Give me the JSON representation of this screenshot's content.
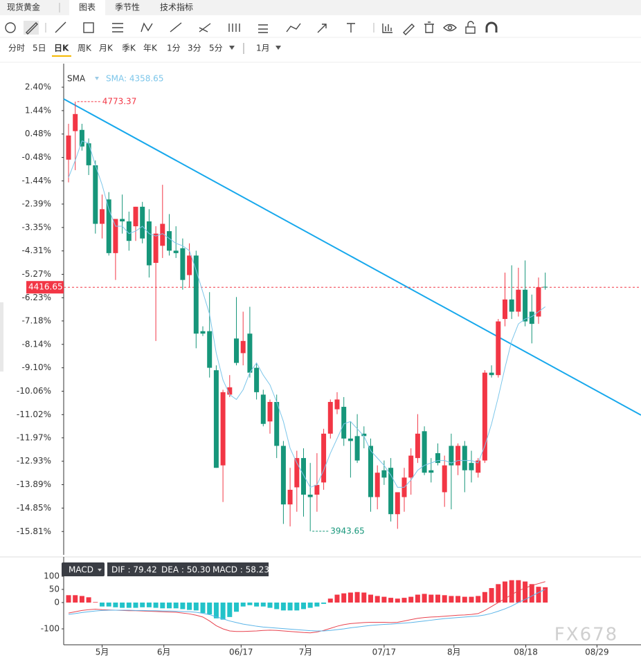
{
  "header": {
    "title": "现货黄金",
    "tabs": [
      "图表",
      "季节性",
      "技术指标"
    ]
  },
  "periods": {
    "items": [
      "分时",
      "5日",
      "日K",
      "周K",
      "月K",
      "季K",
      "年K",
      "1分",
      "3分",
      "5分"
    ],
    "selected": 2,
    "range": "1月"
  },
  "watermark": "FX678",
  "chart_data": [
    {
      "type": "candlestick",
      "up_color": "#f23645",
      "down_color": "#16967a",
      "xlim": [
        -0.62,
        85.26
      ],
      "ylim": [
        -16.71,
        3.28
      ],
      "yticks": [
        {
          "value": 2.4,
          "label": "2.40%"
        },
        {
          "value": 1.44,
          "label": "1.44%"
        },
        {
          "value": 0.48,
          "label": "0.48%"
        },
        {
          "value": -0.48,
          "label": "-0.48%"
        },
        {
          "value": -1.44,
          "label": "-1.44%"
        },
        {
          "value": -2.39,
          "label": "-2.39%"
        },
        {
          "value": -3.35,
          "label": "-3.35%"
        },
        {
          "value": -4.31,
          "label": "-4.31%"
        },
        {
          "value": -5.27,
          "label": "-5.27%"
        },
        {
          "value": -6.23,
          "label": "-6.23%"
        },
        {
          "value": -7.18,
          "label": "-7.18%"
        },
        {
          "value": -8.14,
          "label": "-8.14%"
        },
        {
          "value": -9.1,
          "label": "-9.10%"
        },
        {
          "value": -10.06,
          "label": "-10.06%"
        },
        {
          "value": -11.02,
          "label": "-11.02%"
        },
        {
          "value": -11.97,
          "label": "-11.97%"
        },
        {
          "value": -12.93,
          "label": "-12.93%"
        },
        {
          "value": -13.89,
          "label": "-13.89%"
        },
        {
          "value": -14.85,
          "label": "-14.85%"
        },
        {
          "value": -15.81,
          "label": "-15.81%"
        }
      ],
      "open": [
        -0.57,
        0.6,
        0.65,
        0.1,
        -0.8,
        -3.2,
        -2.2,
        -4.4,
        -3.0,
        -3.1,
        -3.3,
        -2.5,
        -3.1,
        -4.8,
        -4.1,
        -3.5,
        -4.3,
        -4.2,
        -5.3,
        -4.5,
        -7.6,
        -7.6,
        -9.2,
        -13.1,
        -10.2,
        -7.9,
        -8.5,
        -7.7,
        -9.1,
        -10.2,
        -11.3,
        -10.5,
        -12.3,
        -14.7,
        -14.0,
        -12.8,
        -14.3,
        -14.3,
        -13.8,
        -11.8,
        -10.8,
        -10.7,
        -12.0,
        -11.9,
        -11.8,
        -12.3,
        -14.4,
        -13.3,
        -13.2,
        -15.1,
        -14.4,
        -13.6,
        -12.8,
        -11.7,
        -13.3,
        -12.6,
        -14.2,
        -12.3,
        -13.1,
        -12.3,
        -13.0,
        -13.4,
        -12.9,
        -9.3,
        -9.4,
        -7.1,
        -6.3,
        -6.8,
        -5.9,
        -6.8,
        -7.0,
        -5.78
      ],
      "high": [
        0.9,
        1.81,
        0.9,
        0.3,
        -0.6,
        -2.0,
        -1.9,
        -3.0,
        -2.0,
        -2.7,
        -2.5,
        -2.3,
        -2.6,
        -3.3,
        -1.6,
        -2.8,
        -3.3,
        -3.8,
        -4.0,
        -4.3,
        -7.4,
        -6.0,
        -9.0,
        -10.0,
        -9.4,
        -6.2,
        -6.8,
        -6.6,
        -8.9,
        -10.0,
        -10.4,
        -10.2,
        -12.1,
        -13.2,
        -12.5,
        -12.4,
        -13.0,
        -12.6,
        -11.6,
        -10.4,
        -10.1,
        -10.3,
        -11.3,
        -11.0,
        -11.5,
        -12.0,
        -13.1,
        -12.9,
        -12.8,
        -14.3,
        -13.2,
        -12.4,
        -11.0,
        -11.5,
        -12.8,
        -12.2,
        -12.7,
        -11.8,
        -12.2,
        -12.1,
        -12.5,
        -12.8,
        -9.2,
        -9.0,
        -7.1,
        -5.2,
        -4.9,
        -5.0,
        -4.7,
        -6.1,
        -5.4,
        -5.2
      ],
      "low": [
        -1.5,
        -1.0,
        -0.2,
        -1.2,
        -3.6,
        -3.8,
        -4.5,
        -5.5,
        -3.6,
        -4.3,
        -3.9,
        -4.0,
        -5.4,
        -8.0,
        -4.6,
        -4.5,
        -4.6,
        -5.9,
        -5.8,
        -8.3,
        -7.8,
        -9.5,
        -13.2,
        -14.6,
        -10.3,
        -9.0,
        -9.0,
        -9.5,
        -10.4,
        -11.5,
        -11.8,
        -12.8,
        -15.5,
        -15.6,
        -15.0,
        -15.2,
        -15.8,
        -15.0,
        -14.1,
        -12.0,
        -11.0,
        -12.3,
        -13.6,
        -13.0,
        -12.4,
        -15.0,
        -14.9,
        -13.9,
        -15.4,
        -15.7,
        -15.0,
        -14.3,
        -13.0,
        -13.5,
        -13.8,
        -13.1,
        -14.8,
        -14.9,
        -13.5,
        -14.2,
        -13.8,
        -13.6,
        -13.0,
        -9.5,
        -9.5,
        -7.4,
        -7.1,
        -7.0,
        -7.4,
        -8.1,
        -7.3,
        -5.9
      ],
      "close": [
        0.42,
        1.3,
        -0.03,
        -0.8,
        -3.2,
        -2.6,
        -4.4,
        -3.0,
        -3.1,
        -3.9,
        -2.5,
        -3.8,
        -4.9,
        -3.6,
        -3.2,
        -4.3,
        -4.4,
        -5.5,
        -4.5,
        -7.7,
        -7.7,
        -9.1,
        -13.2,
        -10.1,
        -9.9,
        -8.9,
        -8.0,
        -9.3,
        -10.1,
        -11.4,
        -10.5,
        -12.3,
        -14.7,
        -14.1,
        -12.8,
        -14.3,
        -14.4,
        -13.9,
        -11.8,
        -10.5,
        -10.4,
        -12.0,
        -12.1,
        -12.9,
        -11.9,
        -14.4,
        -13.4,
        -13.6,
        -15.1,
        -14.2,
        -13.6,
        -12.7,
        -11.8,
        -13.4,
        -13.4,
        -13.0,
        -13.1,
        -13.1,
        -12.3,
        -13.3,
        -13.3,
        -12.9,
        -9.3,
        -9.4,
        -7.2,
        -6.3,
        -6.8,
        -5.9,
        -7.2,
        -7.3,
        -5.8,
        -5.8
      ],
      "sma": {
        "name": "SMA",
        "color": "#7cc6ea",
        "legend": {
          "value": 4358.65,
          "label": "SMA: 4358.65"
        },
        "values": [
          -1.3,
          -0.6,
          0.2,
          0.1,
          -0.8,
          -1.6,
          -2.6,
          -3.3,
          -3.3,
          -3.6,
          -3.5,
          -3.3,
          -3.6,
          -3.7,
          -3.6,
          -3.8,
          -4.0,
          -4.1,
          -4.3,
          -5.1,
          -6.0,
          -6.9,
          -8.5,
          -9.6,
          -10.2,
          -10.4,
          -10.0,
          -9.3,
          -8.9,
          -9.4,
          -9.8,
          -10.5,
          -11.3,
          -12.4,
          -13.0,
          -13.5,
          -14.0,
          -13.9,
          -13.3,
          -12.6,
          -12.0,
          -11.4,
          -11.3,
          -11.6,
          -11.9,
          -12.5,
          -12.8,
          -13.1,
          -13.5,
          -14.0,
          -14.0,
          -13.7,
          -13.3,
          -13.1,
          -13.0,
          -12.9,
          -12.9,
          -13.0,
          -12.9,
          -12.9,
          -12.9,
          -13.0,
          -12.3,
          -11.4,
          -10.3,
          -9.1,
          -8.0,
          -7.3,
          -7.1,
          -7.0,
          -6.8,
          -6.6
        ]
      },
      "high_label": 4773.37,
      "low_label": 3943.65,
      "last_price": 4416.65
    },
    {
      "type": "macd",
      "title": "MACD",
      "xlim": [
        -0.62,
        85.26
      ],
      "ylim": [
        -150,
        134
      ],
      "yticks": [
        100,
        50,
        0,
        -100
      ],
      "xticks": [
        {
          "value": 5,
          "label": "5月"
        },
        {
          "value": 14.2,
          "label": "6月"
        },
        {
          "value": 25.7,
          "label": "06/17"
        },
        {
          "value": 35.3,
          "label": "7月"
        },
        {
          "value": 47,
          "label": "07/17"
        },
        {
          "value": 57.4,
          "label": "8月"
        },
        {
          "value": 68.1,
          "label": "08/18"
        },
        {
          "value": 78.7,
          "label": "08/29"
        }
      ],
      "histogram": {
        "legend": {
          "value": 58.23,
          "label": "MACD : 58.23"
        },
        "up_color": "#f23645",
        "down_color": "#22c3c9",
        "values": [
          28,
          28,
          25,
          20,
          2,
          -15,
          -15,
          -18,
          -20,
          -20,
          -20,
          -18,
          -18,
          -20,
          -22,
          -22,
          -22,
          -25,
          -28,
          -30,
          -40,
          -45,
          -60,
          -65,
          -55,
          -35,
          -15,
          -10,
          -15,
          -15,
          -20,
          -25,
          -30,
          -30,
          -30,
          -25,
          -20,
          -15,
          -5,
          15,
          30,
          35,
          38,
          40,
          38,
          30,
          25,
          22,
          18,
          15,
          18,
          22,
          30,
          33,
          30,
          30,
          28,
          25,
          25,
          22,
          22,
          25,
          40,
          55,
          70,
          80,
          85,
          85,
          80,
          70,
          60,
          58.23
        ]
      },
      "series": [
        {
          "legend": {
            "value": 79.42,
            "label": "DIF : 79.42"
          },
          "color": "#e8424e",
          "values": [
            -40,
            -35,
            -30,
            -27,
            -25,
            -27,
            -28,
            -29,
            -30,
            -31,
            -31,
            -32,
            -33,
            -34,
            -35,
            -36,
            -37,
            -40,
            -43,
            -48,
            -55,
            -70,
            -88,
            -100,
            -108,
            -110,
            -110,
            -109,
            -108,
            -106,
            -105,
            -106,
            -108,
            -110,
            -112,
            -114,
            -115,
            -112,
            -106,
            -98,
            -90,
            -84,
            -80,
            -78,
            -76,
            -75,
            -75,
            -75,
            -76,
            -75,
            -70,
            -65,
            -60,
            -57,
            -55,
            -54,
            -52,
            -50,
            -48,
            -47,
            -45,
            -42,
            -30,
            -15,
            0,
            15,
            30,
            45,
            55,
            65,
            72,
            79.42
          ]
        },
        {
          "legend": {
            "value": 50.3,
            "label": "DEA : 50.30"
          },
          "color": "#5ab4e8",
          "values": [
            -45,
            -42,
            -38,
            -35,
            -32,
            -30,
            -29,
            -29,
            -29,
            -29,
            -30,
            -30,
            -31,
            -31,
            -32,
            -32,
            -33,
            -34,
            -35,
            -37,
            -41,
            -46,
            -54,
            -62,
            -70,
            -76,
            -82,
            -86,
            -90,
            -93,
            -95,
            -97,
            -99,
            -101,
            -103,
            -105,
            -107,
            -108,
            -108,
            -106,
            -103,
            -100,
            -96,
            -93,
            -90,
            -87,
            -85,
            -83,
            -82,
            -80,
            -78,
            -76,
            -73,
            -70,
            -67,
            -64,
            -61,
            -59,
            -57,
            -55,
            -53,
            -51,
            -47,
            -41,
            -33,
            -24,
            -13,
            0,
            12,
            25,
            38,
            50.3
          ]
        }
      ]
    }
  ]
}
